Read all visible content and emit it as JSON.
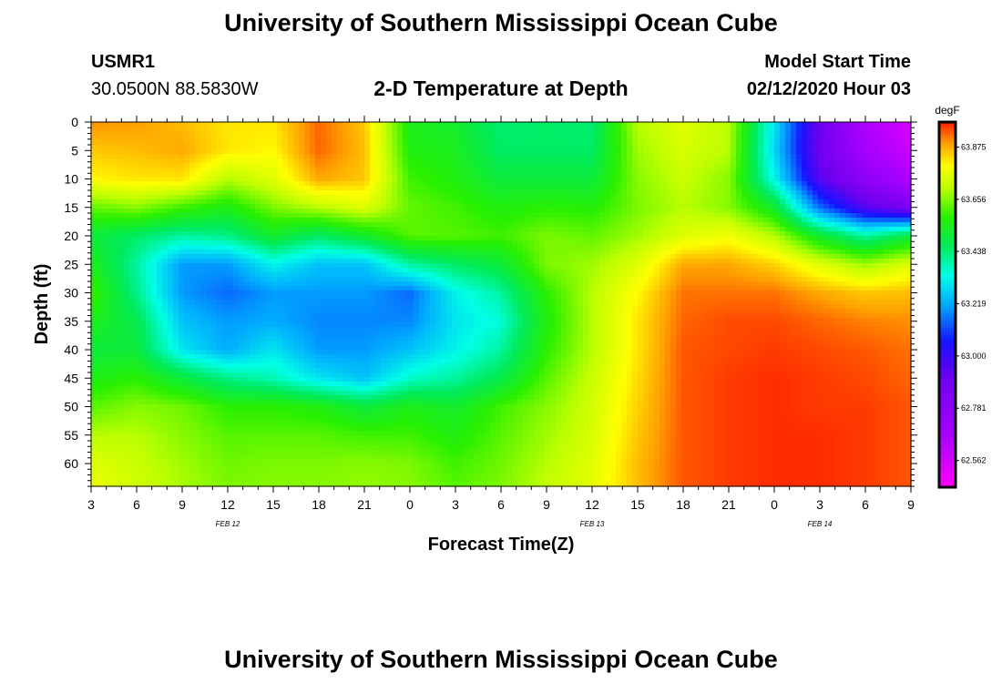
{
  "header": {
    "title": "University of Southern Mississippi Ocean Cube",
    "station_id": "USMR1",
    "location": "30.0500N 88.5830W",
    "plot_title": "2-D Temperature at Depth",
    "model_start_label": "Model Start Time",
    "model_start_value": "02/12/2020 Hour 03"
  },
  "footer": {
    "title": "University of Southern Mississippi Ocean Cube"
  },
  "chart_data": {
    "type": "heatmap",
    "title": "2-D Temperature at Depth",
    "xlabel": "Forecast Time(Z)",
    "ylabel": "Depth (ft)",
    "x_unit": "forecast hour since 02/12/2020 03Z",
    "xlim": [
      0,
      54
    ],
    "ylim": [
      0,
      64
    ],
    "x_tick_labels": [
      "3",
      "6",
      "9",
      "12",
      "15",
      "18",
      "21",
      "0",
      "3",
      "6",
      "9",
      "12",
      "15",
      "18",
      "21",
      "0",
      "3",
      "6",
      "9"
    ],
    "x_date_labels": [
      {
        "label": "FEB 12",
        "at_tick": "12"
      },
      {
        "label": "FEB 13",
        "at_tick": "12"
      },
      {
        "label": "FEB 14",
        "at_tick": "3"
      }
    ],
    "y_ticks": [
      0,
      5,
      10,
      15,
      20,
      25,
      30,
      35,
      40,
      45,
      50,
      55,
      60
    ],
    "colorbar": {
      "unit": "degF",
      "min": 62.45,
      "max": 63.98,
      "tick_values": [
        62.562,
        62.781,
        63.0,
        63.219,
        63.438,
        63.656,
        63.875
      ],
      "tick_labels": [
        "62.562",
        "62.781",
        "63.000",
        "63.219",
        "63.438",
        "63.656",
        "63.875"
      ]
    },
    "grid_columns_hours": [
      0,
      3,
      6,
      9,
      12,
      15,
      18,
      21,
      24,
      27,
      30,
      33,
      36,
      39,
      42,
      45,
      48,
      51,
      54
    ],
    "grid_rows_depth_ft": [
      0,
      5,
      10,
      15,
      20,
      25,
      30,
      35,
      40,
      45,
      50,
      55,
      60,
      64
    ],
    "values": [
      [
        63.9,
        63.89,
        63.86,
        63.82,
        63.82,
        63.93,
        63.85,
        63.55,
        63.52,
        63.44,
        63.45,
        63.44,
        63.7,
        63.75,
        63.7,
        63.3,
        62.9,
        62.65,
        62.55
      ],
      [
        63.85,
        63.86,
        63.88,
        63.82,
        63.8,
        63.93,
        63.86,
        63.56,
        63.54,
        63.45,
        63.45,
        63.45,
        63.68,
        63.74,
        63.7,
        63.28,
        62.9,
        62.68,
        62.58
      ],
      [
        63.8,
        63.82,
        63.82,
        63.7,
        63.75,
        63.88,
        63.85,
        63.6,
        63.56,
        63.5,
        63.5,
        63.5,
        63.66,
        63.72,
        63.66,
        63.33,
        62.95,
        62.78,
        62.65
      ],
      [
        63.63,
        63.66,
        63.6,
        63.55,
        63.65,
        63.7,
        63.75,
        63.63,
        63.6,
        63.56,
        63.58,
        63.57,
        63.65,
        63.7,
        63.66,
        63.52,
        63.15,
        62.95,
        62.85
      ],
      [
        63.5,
        63.45,
        63.4,
        63.42,
        63.52,
        63.45,
        63.52,
        63.62,
        63.62,
        63.6,
        63.65,
        63.63,
        63.68,
        63.75,
        63.78,
        63.7,
        63.52,
        63.4,
        63.5
      ],
      [
        63.55,
        63.4,
        63.2,
        63.2,
        63.32,
        63.25,
        63.25,
        63.4,
        63.45,
        63.5,
        63.65,
        63.68,
        63.75,
        63.88,
        63.88,
        63.84,
        63.75,
        63.68,
        63.75
      ],
      [
        63.6,
        63.42,
        63.2,
        63.15,
        63.2,
        63.2,
        63.2,
        63.15,
        63.32,
        63.4,
        63.58,
        63.7,
        63.8,
        63.92,
        63.92,
        63.92,
        63.88,
        63.85,
        63.86
      ],
      [
        63.55,
        63.48,
        63.25,
        63.2,
        63.22,
        63.18,
        63.18,
        63.18,
        63.3,
        63.35,
        63.56,
        63.7,
        63.82,
        63.93,
        63.95,
        63.95,
        63.93,
        63.91,
        63.9
      ],
      [
        63.5,
        63.5,
        63.3,
        63.22,
        63.3,
        63.2,
        63.2,
        63.25,
        63.32,
        63.4,
        63.58,
        63.7,
        63.82,
        63.94,
        63.95,
        63.96,
        63.95,
        63.94,
        63.92
      ],
      [
        63.55,
        63.58,
        63.5,
        63.42,
        63.38,
        63.3,
        63.25,
        63.36,
        63.4,
        63.48,
        63.62,
        63.72,
        63.83,
        63.94,
        63.96,
        63.97,
        63.96,
        63.95,
        63.93
      ],
      [
        63.62,
        63.66,
        63.64,
        63.58,
        63.58,
        63.56,
        63.5,
        63.55,
        63.52,
        63.6,
        63.66,
        63.73,
        63.84,
        63.94,
        63.96,
        63.97,
        63.96,
        63.96,
        63.94
      ],
      [
        63.7,
        63.7,
        63.66,
        63.62,
        63.62,
        63.62,
        63.6,
        63.6,
        63.56,
        63.62,
        63.68,
        63.74,
        63.85,
        63.94,
        63.96,
        63.97,
        63.97,
        63.96,
        63.94
      ],
      [
        63.75,
        63.72,
        63.68,
        63.64,
        63.65,
        63.65,
        63.66,
        63.65,
        63.6,
        63.64,
        63.7,
        63.75,
        63.86,
        63.94,
        63.96,
        63.97,
        63.97,
        63.96,
        63.94
      ],
      [
        63.77,
        63.73,
        63.69,
        63.65,
        63.66,
        63.66,
        63.67,
        63.66,
        63.62,
        63.65,
        63.71,
        63.76,
        63.86,
        63.94,
        63.96,
        63.97,
        63.97,
        63.96,
        63.94
      ]
    ]
  }
}
